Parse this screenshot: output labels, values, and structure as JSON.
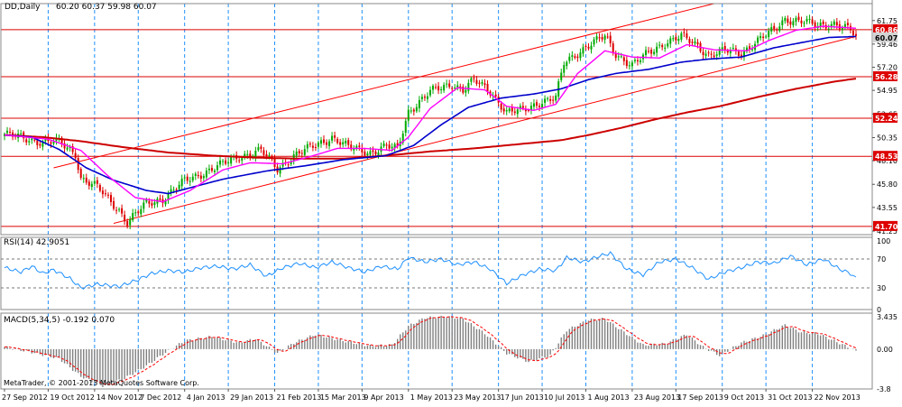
{
  "header": {
    "symbol_timeframe": "DD,Daily",
    "ohlc": "60.20 60.37 59.98 60.07"
  },
  "watermark": "MetaTrader, © 2001-2013 MetaQuotes Software Corp.",
  "colors": {
    "background": "#ffffff",
    "grid": "#1e90ff",
    "candle_up": "#00aa00",
    "candle_down": "#dd0000",
    "sma_pink": "#ff00ff",
    "sma_blue": "#0000cc",
    "sma_red": "#cc0000",
    "hline": "#dd0000",
    "channel": "#ff0000",
    "rsi_line": "#1e90ff",
    "macd_hist": "#808080",
    "macd_signal": "#ff0000"
  },
  "main_panel": {
    "y_ticks": [
      "61.75",
      "59.46",
      "57.20",
      "54.95",
      "52.65",
      "50.35",
      "48.10",
      "45.80",
      "43.55",
      "41.25"
    ],
    "y_range": [
      40.9,
      63.4
    ],
    "last_price": "60.07",
    "hlines": [
      {
        "value": 60.86,
        "label": "60.86"
      },
      {
        "value": 56.28,
        "label": "56.28"
      },
      {
        "value": 52.24,
        "label": "52.24"
      },
      {
        "value": 48.53,
        "label": "48.53"
      },
      {
        "value": 41.7,
        "label": "41.70"
      }
    ]
  },
  "rsi_panel": {
    "title": "RSI(14) 42.9051",
    "y_ticks": [
      "100",
      "70",
      "30",
      "0"
    ],
    "levels": [
      70,
      30
    ]
  },
  "macd_panel": {
    "title": "MACD(5,34,5) -0.192 0.070",
    "y_ticks": [
      "3.435",
      "0.00",
      "-3.8"
    ],
    "y_range": [
      -3.8,
      3.435
    ]
  },
  "x_labels": [
    "27 Sep 2012",
    "19 Oct 2012",
    "14 Nov 2012",
    "7 Dec 2012",
    "4 Jan 2013",
    "29 Jan 2013",
    "21 Feb 2013",
    "15 Mar 2013",
    "9 Apr 2013",
    "1 May 2013",
    "23 May 2013",
    "17 Jun 2013",
    "10 Jul 2013",
    "1 Aug 2013",
    "23 Aug 2013",
    "17 Sep 2013",
    "9 Oct 2013",
    "31 Oct 2013",
    "22 Nov 2013"
  ],
  "chart_data": {
    "type": "candlestick",
    "price_anchors": [
      [
        0,
        50.7
      ],
      [
        12,
        50.0
      ],
      [
        20,
        49.9
      ],
      [
        26,
        48.8
      ],
      [
        28,
        46.4
      ],
      [
        34,
        45.5
      ],
      [
        42,
        43.3
      ],
      [
        45,
        42.1
      ],
      [
        52,
        43.9
      ],
      [
        58,
        44.4
      ],
      [
        66,
        46.1
      ],
      [
        76,
        47.3
      ],
      [
        86,
        48.5
      ],
      [
        94,
        49.1
      ],
      [
        100,
        47.3
      ],
      [
        106,
        48.6
      ],
      [
        114,
        49.6
      ],
      [
        120,
        50.4
      ],
      [
        126,
        49.4
      ],
      [
        134,
        48.9
      ],
      [
        140,
        49.5
      ],
      [
        144,
        49.2
      ],
      [
        148,
        52.9
      ],
      [
        156,
        54.8
      ],
      [
        164,
        55.6
      ],
      [
        168,
        55.0
      ],
      [
        172,
        55.9
      ],
      [
        178,
        54.9
      ],
      [
        184,
        52.8
      ],
      [
        190,
        53.0
      ],
      [
        196,
        53.8
      ],
      [
        202,
        54.2
      ],
      [
        205,
        57.6
      ],
      [
        208,
        58.2
      ],
      [
        213,
        59.2
      ],
      [
        220,
        60.2
      ],
      [
        224,
        58.5
      ],
      [
        230,
        57.4
      ],
      [
        236,
        58.6
      ],
      [
        242,
        59.6
      ],
      [
        248,
        60.2
      ],
      [
        254,
        59.3
      ],
      [
        258,
        58.4
      ],
      [
        264,
        58.8
      ],
      [
        270,
        58.6
      ],
      [
        276,
        59.8
      ],
      [
        282,
        60.8
      ],
      [
        286,
        61.9
      ],
      [
        292,
        61.7
      ],
      [
        298,
        61.2
      ],
      [
        304,
        61.5
      ],
      [
        310,
        60.8
      ],
      [
        312,
        60.07
      ]
    ],
    "rsi_anchors": [
      [
        0,
        58
      ],
      [
        6,
        52
      ],
      [
        10,
        60
      ],
      [
        14,
        50
      ],
      [
        18,
        55
      ],
      [
        24,
        43
      ],
      [
        28,
        30
      ],
      [
        34,
        35
      ],
      [
        42,
        32
      ],
      [
        48,
        40
      ],
      [
        54,
        50
      ],
      [
        60,
        54
      ],
      [
        66,
        52
      ],
      [
        72,
        58
      ],
      [
        78,
        60
      ],
      [
        84,
        56
      ],
      [
        90,
        62
      ],
      [
        96,
        46
      ],
      [
        102,
        58
      ],
      [
        108,
        64
      ],
      [
        114,
        58
      ],
      [
        120,
        66
      ],
      [
        126,
        58
      ],
      [
        132,
        52
      ],
      [
        138,
        60
      ],
      [
        144,
        56
      ],
      [
        148,
        72
      ],
      [
        154,
        66
      ],
      [
        160,
        70
      ],
      [
        166,
        62
      ],
      [
        172,
        66
      ],
      [
        178,
        56
      ],
      [
        184,
        36
      ],
      [
        190,
        48
      ],
      [
        196,
        56
      ],
      [
        202,
        54
      ],
      [
        206,
        72
      ],
      [
        212,
        66
      ],
      [
        218,
        74
      ],
      [
        222,
        78
      ],
      [
        228,
        56
      ],
      [
        234,
        48
      ],
      [
        240,
        66
      ],
      [
        246,
        70
      ],
      [
        252,
        58
      ],
      [
        258,
        42
      ],
      [
        264,
        52
      ],
      [
        270,
        58
      ],
      [
        276,
        66
      ],
      [
        282,
        64
      ],
      [
        288,
        74
      ],
      [
        294,
        62
      ],
      [
        300,
        70
      ],
      [
        306,
        56
      ],
      [
        310,
        50
      ],
      [
        312,
        43
      ]
    ],
    "macd_anchors": [
      [
        0,
        0.2
      ],
      [
        10,
        -0.3
      ],
      [
        20,
        -0.9
      ],
      [
        28,
        -2.6
      ],
      [
        36,
        -3.5
      ],
      [
        44,
        -2.8
      ],
      [
        52,
        -1.6
      ],
      [
        58,
        -0.5
      ],
      [
        66,
        0.8
      ],
      [
        76,
        1.2
      ],
      [
        86,
        0.6
      ],
      [
        92,
        1.0
      ],
      [
        100,
        -0.4
      ],
      [
        106,
        0.6
      ],
      [
        114,
        1.4
      ],
      [
        124,
        0.8
      ],
      [
        134,
        0.3
      ],
      [
        142,
        0.4
      ],
      [
        148,
        2.2
      ],
      [
        154,
        3.0
      ],
      [
        162,
        3.1
      ],
      [
        168,
        2.9
      ],
      [
        176,
        1.5
      ],
      [
        184,
        -0.4
      ],
      [
        192,
        -1.2
      ],
      [
        200,
        -0.6
      ],
      [
        206,
        1.8
      ],
      [
        214,
        2.8
      ],
      [
        220,
        2.9
      ],
      [
        226,
        1.8
      ],
      [
        234,
        0.4
      ],
      [
        242,
        0.5
      ],
      [
        250,
        1.4
      ],
      [
        256,
        0.2
      ],
      [
        262,
        -0.6
      ],
      [
        270,
        0.6
      ],
      [
        278,
        1.3
      ],
      [
        286,
        2.3
      ],
      [
        292,
        1.6
      ],
      [
        298,
        1.5
      ],
      [
        304,
        0.8
      ],
      [
        310,
        0.1
      ],
      [
        312,
        -0.2
      ]
    ],
    "sma_pink_anchors": [
      [
        0,
        50.6
      ],
      [
        16,
        50.2
      ],
      [
        28,
        49.1
      ],
      [
        38,
        46.6
      ],
      [
        48,
        44.5
      ],
      [
        58,
        44.1
      ],
      [
        68,
        45.2
      ],
      [
        80,
        47.2
      ],
      [
        90,
        47.9
      ],
      [
        102,
        47.8
      ],
      [
        112,
        48.5
      ],
      [
        122,
        49.3
      ],
      [
        132,
        49.3
      ],
      [
        142,
        49.1
      ],
      [
        148,
        50.4
      ],
      [
        156,
        53.2
      ],
      [
        166,
        55.2
      ],
      [
        176,
        55.0
      ],
      [
        184,
        53.4
      ],
      [
        194,
        53.0
      ],
      [
        202,
        53.6
      ],
      [
        210,
        56.6
      ],
      [
        220,
        58.8
      ],
      [
        230,
        58.2
      ],
      [
        240,
        58.1
      ],
      [
        250,
        59.4
      ],
      [
        260,
        58.9
      ],
      [
        272,
        58.8
      ],
      [
        280,
        59.8
      ],
      [
        290,
        60.8
      ],
      [
        300,
        61.2
      ],
      [
        312,
        61.0
      ]
    ],
    "sma_blue_anchors": [
      [
        0,
        50.6
      ],
      [
        10,
        50.4
      ],
      [
        20,
        49.2
      ],
      [
        30,
        47.4
      ],
      [
        40,
        46.2
      ],
      [
        52,
        45.2
      ],
      [
        60,
        44.9
      ],
      [
        70,
        45.6
      ],
      [
        80,
        46.3
      ],
      [
        96,
        47.1
      ],
      [
        110,
        47.6
      ],
      [
        124,
        48.2
      ],
      [
        140,
        48.6
      ],
      [
        150,
        49.6
      ],
      [
        160,
        51.6
      ],
      [
        170,
        53.3
      ],
      [
        182,
        54.2
      ],
      [
        194,
        54.6
      ],
      [
        204,
        55.1
      ],
      [
        214,
        56.0
      ],
      [
        224,
        56.6
      ],
      [
        236,
        57.0
      ],
      [
        248,
        57.7
      ],
      [
        258,
        58.0
      ],
      [
        270,
        58.2
      ],
      [
        282,
        59.1
      ],
      [
        292,
        59.6
      ],
      [
        302,
        60.1
      ],
      [
        312,
        60.2
      ]
    ],
    "sma_red_anchors": [
      [
        0,
        50.6
      ],
      [
        14,
        50.4
      ],
      [
        28,
        50.0
      ],
      [
        44,
        49.4
      ],
      [
        60,
        48.9
      ],
      [
        76,
        48.6
      ],
      [
        92,
        48.4
      ],
      [
        108,
        48.3
      ],
      [
        124,
        48.3
      ],
      [
        140,
        48.6
      ],
      [
        156,
        49.0
      ],
      [
        172,
        49.3
      ],
      [
        188,
        49.7
      ],
      [
        204,
        50.1
      ],
      [
        214,
        50.6
      ],
      [
        226,
        51.3
      ],
      [
        238,
        52.1
      ],
      [
        250,
        52.8
      ],
      [
        262,
        53.4
      ],
      [
        276,
        54.3
      ],
      [
        290,
        55.1
      ],
      [
        304,
        55.8
      ],
      [
        312,
        56.1
      ]
    ],
    "channel_lines": [
      {
        "points": [
          [
            18,
            47.4
          ],
          [
            260,
            63.4
          ]
        ]
      },
      {
        "points": [
          [
            40,
            42.0
          ],
          [
            312,
            60.2
          ]
        ]
      }
    ],
    "bar_count": 313
  }
}
